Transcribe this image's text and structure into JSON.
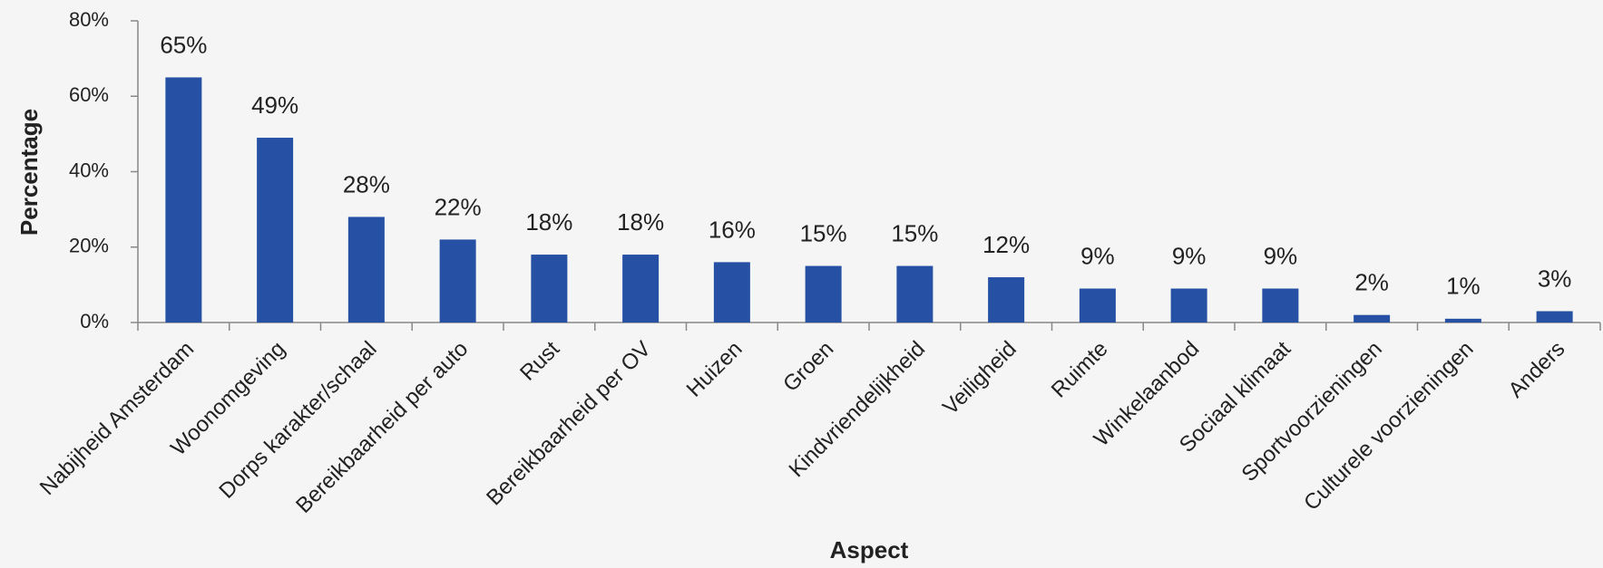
{
  "chart_data": {
    "type": "bar",
    "x_label": "Aspect",
    "y_label": "Percentage",
    "categories": [
      "Nabijheid Amsterdam",
      "Woonomgeving",
      "Dorps karakter/schaal",
      "Bereikbaarheid per auto",
      "Rust",
      "Bereikbaarheid per OV",
      "Huizen",
      "Groen",
      "Kindvriendelijkheid",
      "Veiligheid",
      "Ruimte",
      "Winkelaanbod",
      "Sociaal klimaat",
      "Sportvoorzieningen",
      "Culturele voorzieningen",
      "Anders"
    ],
    "values": [
      65,
      49,
      28,
      22,
      18,
      18,
      16,
      15,
      15,
      12,
      9,
      9,
      9,
      2,
      1,
      3
    ],
    "value_labels": [
      "65%",
      "49%",
      "28%",
      "22%",
      "18%",
      "18%",
      "16%",
      "15%",
      "15%",
      "12%",
      "9%",
      "9%",
      "9%",
      "2%",
      "1%",
      "3%"
    ],
    "color": "#2550a3",
    "ylim": [
      0,
      80
    ],
    "yticks": [
      {
        "value": 0,
        "label": "0%"
      },
      {
        "value": 20,
        "label": "20%"
      },
      {
        "value": 40,
        "label": "40%"
      },
      {
        "value": 60,
        "label": "60%"
      },
      {
        "value": 80,
        "label": "80%"
      }
    ],
    "grid": false
  }
}
